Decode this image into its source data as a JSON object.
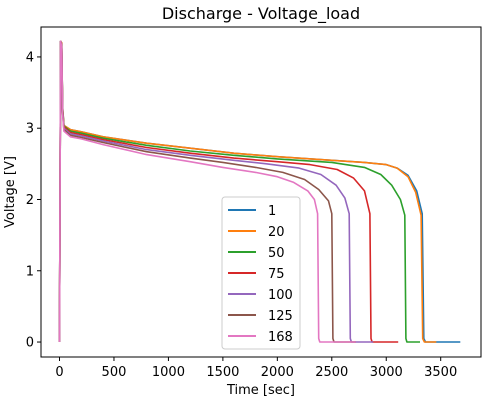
{
  "chart_data": {
    "type": "line",
    "title": "Discharge - Voltage_load",
    "xlabel": "Time [sec]",
    "ylabel": "Voltage [V]",
    "xlim": [
      -170,
      3870
    ],
    "ylim": [
      -0.21,
      4.42
    ],
    "xticks": [
      0,
      500,
      1000,
      1500,
      2000,
      2500,
      3000,
      3500
    ],
    "yticks": [
      0,
      1,
      2,
      3,
      4
    ],
    "grid": false,
    "legend_position": "lower center",
    "series": [
      {
        "name": "1",
        "color": "#1f77b4",
        "points": [
          [
            0,
            0
          ],
          [
            10,
            4.22
          ],
          [
            20,
            4.2
          ],
          [
            28,
            3.3
          ],
          [
            40,
            3.04
          ],
          [
            100,
            2.98
          ],
          [
            200,
            2.95
          ],
          [
            400,
            2.88
          ],
          [
            800,
            2.79
          ],
          [
            1200,
            2.72
          ],
          [
            1600,
            2.65
          ],
          [
            2000,
            2.6
          ],
          [
            2500,
            2.55
          ],
          [
            2800,
            2.52
          ],
          [
            3000,
            2.49
          ],
          [
            3100,
            2.44
          ],
          [
            3200,
            2.34
          ],
          [
            3280,
            2.12
          ],
          [
            3330,
            1.8
          ],
          [
            3345,
            0.05
          ],
          [
            3360,
            0
          ],
          [
            3680,
            0
          ]
        ]
      },
      {
        "name": "20",
        "color": "#ff7f0e",
        "points": [
          [
            0,
            0
          ],
          [
            10,
            4.22
          ],
          [
            20,
            4.2
          ],
          [
            28,
            3.3
          ],
          [
            40,
            3.04
          ],
          [
            100,
            2.98
          ],
          [
            200,
            2.95
          ],
          [
            400,
            2.88
          ],
          [
            800,
            2.79
          ],
          [
            1200,
            2.72
          ],
          [
            1600,
            2.65
          ],
          [
            2000,
            2.6
          ],
          [
            2500,
            2.55
          ],
          [
            2800,
            2.52
          ],
          [
            3000,
            2.49
          ],
          [
            3100,
            2.44
          ],
          [
            3200,
            2.32
          ],
          [
            3270,
            2.1
          ],
          [
            3320,
            1.78
          ],
          [
            3335,
            0.05
          ],
          [
            3350,
            0
          ],
          [
            3460,
            0
          ]
        ]
      },
      {
        "name": "50",
        "color": "#2ca02c",
        "points": [
          [
            0,
            0
          ],
          [
            10,
            4.22
          ],
          [
            20,
            4.18
          ],
          [
            28,
            3.28
          ],
          [
            40,
            3.03
          ],
          [
            100,
            2.96
          ],
          [
            200,
            2.93
          ],
          [
            400,
            2.86
          ],
          [
            800,
            2.76
          ],
          [
            1200,
            2.68
          ],
          [
            1600,
            2.62
          ],
          [
            2000,
            2.57
          ],
          [
            2500,
            2.52
          ],
          [
            2800,
            2.45
          ],
          [
            2950,
            2.35
          ],
          [
            3050,
            2.2
          ],
          [
            3130,
            2.0
          ],
          [
            3170,
            1.78
          ],
          [
            3180,
            0.05
          ],
          [
            3190,
            0
          ],
          [
            3310,
            0
          ]
        ]
      },
      {
        "name": "75",
        "color": "#d62728",
        "points": [
          [
            0,
            0
          ],
          [
            10,
            4.22
          ],
          [
            20,
            4.18
          ],
          [
            28,
            3.26
          ],
          [
            40,
            3.02
          ],
          [
            100,
            2.94
          ],
          [
            200,
            2.91
          ],
          [
            400,
            2.84
          ],
          [
            800,
            2.73
          ],
          [
            1200,
            2.65
          ],
          [
            1600,
            2.58
          ],
          [
            2000,
            2.53
          ],
          [
            2300,
            2.49
          ],
          [
            2550,
            2.42
          ],
          [
            2700,
            2.3
          ],
          [
            2800,
            2.12
          ],
          [
            2850,
            1.8
          ],
          [
            2860,
            0.05
          ],
          [
            2870,
            0
          ],
          [
            3110,
            0
          ]
        ]
      },
      {
        "name": "100",
        "color": "#9467bd",
        "points": [
          [
            0,
            0
          ],
          [
            10,
            4.22
          ],
          [
            20,
            4.16
          ],
          [
            28,
            3.24
          ],
          [
            40,
            3.0
          ],
          [
            100,
            2.92
          ],
          [
            200,
            2.89
          ],
          [
            400,
            2.82
          ],
          [
            800,
            2.7
          ],
          [
            1200,
            2.62
          ],
          [
            1600,
            2.55
          ],
          [
            1900,
            2.5
          ],
          [
            2200,
            2.44
          ],
          [
            2400,
            2.35
          ],
          [
            2540,
            2.2
          ],
          [
            2620,
            2.02
          ],
          [
            2660,
            1.8
          ],
          [
            2670,
            0.05
          ],
          [
            2680,
            0
          ],
          [
            2880,
            0
          ]
        ]
      },
      {
        "name": "125",
        "color": "#8c564b",
        "points": [
          [
            0,
            0
          ],
          [
            10,
            4.22
          ],
          [
            20,
            4.16
          ],
          [
            28,
            3.22
          ],
          [
            40,
            2.98
          ],
          [
            100,
            2.9
          ],
          [
            200,
            2.87
          ],
          [
            400,
            2.8
          ],
          [
            800,
            2.67
          ],
          [
            1200,
            2.58
          ],
          [
            1500,
            2.52
          ],
          [
            1800,
            2.45
          ],
          [
            2050,
            2.38
          ],
          [
            2250,
            2.28
          ],
          [
            2380,
            2.14
          ],
          [
            2470,
            1.98
          ],
          [
            2500,
            1.8
          ],
          [
            2510,
            0.05
          ],
          [
            2520,
            0
          ],
          [
            2720,
            0
          ]
        ]
      },
      {
        "name": "168",
        "color": "#e377c2",
        "points": [
          [
            0,
            0
          ],
          [
            10,
            4.22
          ],
          [
            20,
            4.14
          ],
          [
            28,
            3.2
          ],
          [
            40,
            2.96
          ],
          [
            100,
            2.88
          ],
          [
            200,
            2.85
          ],
          [
            400,
            2.77
          ],
          [
            800,
            2.63
          ],
          [
            1200,
            2.53
          ],
          [
            1500,
            2.45
          ],
          [
            1800,
            2.38
          ],
          [
            2000,
            2.32
          ],
          [
            2150,
            2.24
          ],
          [
            2280,
            2.12
          ],
          [
            2340,
            2.0
          ],
          [
            2370,
            1.8
          ],
          [
            2380,
            0.05
          ],
          [
            2390,
            0
          ],
          [
            2720,
            0
          ]
        ]
      }
    ]
  }
}
